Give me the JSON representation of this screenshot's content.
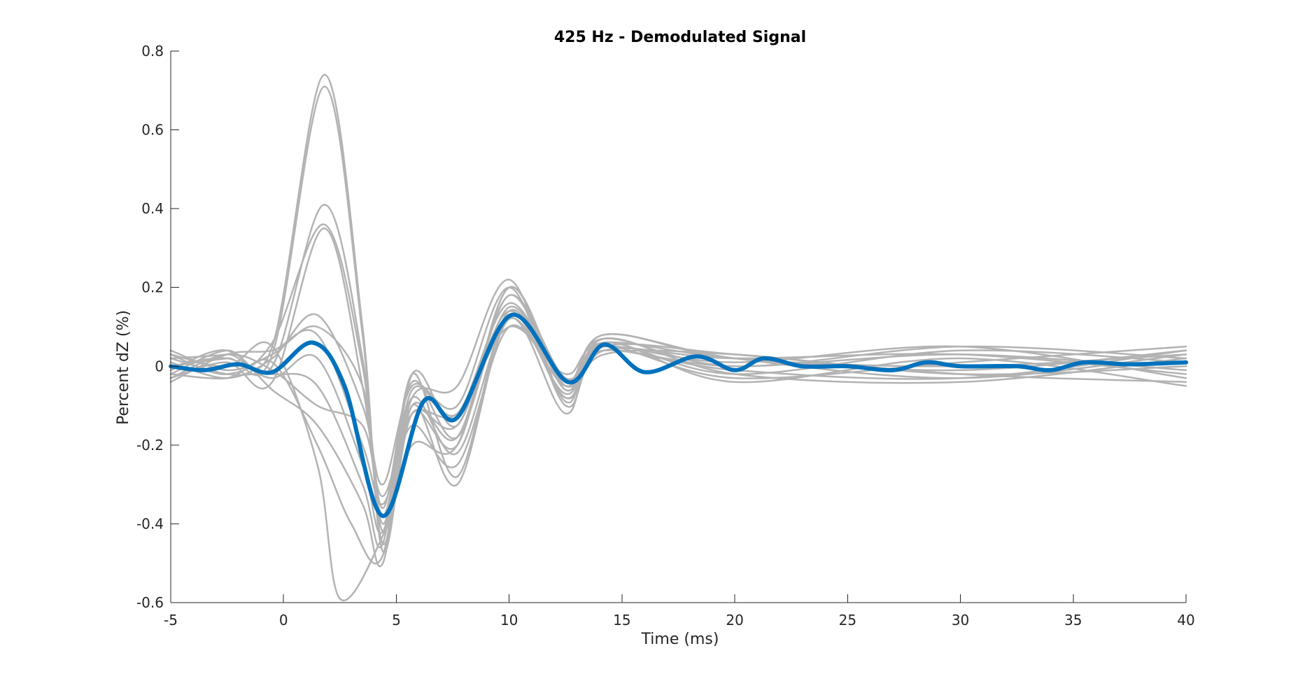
{
  "chart_data": {
    "type": "line",
    "title": "425 Hz - Demodulated Signal",
    "xlabel": "Time (ms)",
    "ylabel": "Percent dZ (%)",
    "xlim": [
      -5,
      40
    ],
    "ylim": [
      -0.6,
      0.8
    ],
    "xticks": [
      -5,
      0,
      5,
      10,
      15,
      20,
      25,
      30,
      35,
      40
    ],
    "yticks": [
      -0.6,
      -0.4,
      -0.2,
      0,
      0.2,
      0.4,
      0.6,
      0.8
    ],
    "xtick_labels": [
      "-5",
      "0",
      "5",
      "10",
      "15",
      "20",
      "25",
      "30",
      "35",
      "40"
    ],
    "ytick_labels": [
      "-0.6",
      "-0.4",
      "-0.2",
      "0",
      "0.2",
      "0.4",
      "0.6",
      "0.8"
    ],
    "grid": false,
    "colors": {
      "individual": "#b3b3b3",
      "mean": "#0072bd"
    },
    "individual_traces": [
      {
        "x": [
          -5,
          -2.5,
          -0.5,
          1.8,
          3.5,
          4.4,
          5.7,
          7.7,
          10,
          12.5,
          14.2,
          20,
          30,
          40
        ],
        "y": [
          0.02,
          0.03,
          0.05,
          0.74,
          0.1,
          -0.47,
          -0.12,
          -0.2,
          0.2,
          -0.05,
          0.08,
          0.02,
          -0.03,
          0.03
        ]
      },
      {
        "x": [
          -5,
          -2.5,
          -0.5,
          1.8,
          3.5,
          4.4,
          5.7,
          7.7,
          10,
          12.5,
          14.2,
          20,
          30,
          40
        ],
        "y": [
          0.0,
          0.02,
          0.03,
          0.71,
          0.08,
          -0.45,
          -0.1,
          -0.18,
          0.18,
          -0.06,
          0.06,
          -0.02,
          0.04,
          0.01
        ]
      },
      {
        "x": [
          -5,
          -2.5,
          -0.5,
          1.8,
          3.5,
          4.4,
          5.7,
          7.7,
          10,
          12.5,
          14.2,
          20,
          30,
          40
        ],
        "y": [
          -0.02,
          0.04,
          0.0,
          0.41,
          0.02,
          -0.42,
          -0.12,
          -0.15,
          0.14,
          -0.08,
          0.05,
          0.03,
          -0.02,
          -0.04
        ]
      },
      {
        "x": [
          -5,
          -2.5,
          -0.5,
          1.8,
          3.5,
          4.4,
          5.7,
          7.7,
          10,
          12.5,
          14.2,
          20,
          30,
          40
        ],
        "y": [
          0.03,
          -0.02,
          0.06,
          0.36,
          0.0,
          -0.4,
          -0.06,
          -0.12,
          0.16,
          -0.04,
          0.07,
          0.0,
          0.05,
          0.02
        ]
      },
      {
        "x": [
          -5,
          -2.5,
          -0.5,
          1.8,
          3.5,
          4.4,
          5.7,
          7.7,
          10,
          12.5,
          14.2,
          20,
          30,
          40
        ],
        "y": [
          -0.03,
          0.01,
          -0.04,
          0.35,
          -0.05,
          -0.38,
          -0.08,
          -0.22,
          0.12,
          -0.07,
          0.05,
          -0.03,
          0.01,
          0.05
        ]
      },
      {
        "x": [
          -5,
          -2.5,
          -0.5,
          1.5,
          3.5,
          4.4,
          5.7,
          7.7,
          10,
          12.5,
          14.2,
          20,
          30,
          40
        ],
        "y": [
          0.01,
          -0.03,
          0.02,
          0.13,
          -0.1,
          -0.3,
          -0.05,
          -0.1,
          0.2,
          -0.1,
          0.04,
          0.02,
          0.03,
          -0.02
        ]
      },
      {
        "x": [
          -5,
          -2.5,
          -0.5,
          1.5,
          3.5,
          4.4,
          5.7,
          7.7,
          10,
          12.5,
          14.2,
          20,
          30,
          40
        ],
        "y": [
          -0.04,
          0.03,
          0.04,
          0.08,
          -0.2,
          -0.35,
          -0.15,
          -0.25,
          0.1,
          -0.05,
          0.04,
          -0.01,
          -0.03,
          0.04
        ]
      },
      {
        "x": [
          -5,
          -2.5,
          -0.5,
          1.5,
          3.5,
          4.4,
          5.7,
          7.7,
          10,
          12.5,
          14.2,
          20,
          30,
          40
        ],
        "y": [
          0.02,
          -0.02,
          -0.02,
          -0.05,
          -0.3,
          -0.45,
          -0.02,
          -0.28,
          0.14,
          -0.08,
          0.03,
          0.03,
          -0.02,
          0.0
        ]
      },
      {
        "x": [
          -5,
          -2.5,
          -0.5,
          1.5,
          3.5,
          4.4,
          5.7,
          7.7,
          10,
          12.5,
          14.2,
          20,
          30,
          40
        ],
        "y": [
          -0.01,
          0.04,
          -0.06,
          -0.15,
          -0.35,
          -0.5,
          -0.1,
          -0.3,
          0.12,
          -0.12,
          0.06,
          -0.04,
          0.02,
          -0.05
        ]
      },
      {
        "x": [
          -5,
          -2.5,
          -0.5,
          1.5,
          2.5,
          4.4,
          5.7,
          7.7,
          10,
          12.5,
          14.2,
          20,
          30,
          40
        ],
        "y": [
          0.03,
          0.0,
          0.05,
          -0.25,
          -0.59,
          -0.43,
          -0.2,
          -0.2,
          0.2,
          -0.06,
          0.08,
          0.02,
          0.0,
          0.03
        ]
      },
      {
        "x": [
          -5,
          -2.5,
          -0.5,
          1.5,
          3.0,
          4.4,
          5.7,
          7.7,
          10,
          12.5,
          14.2,
          20,
          30,
          40
        ],
        "y": [
          -0.02,
          -0.03,
          0.01,
          -0.2,
          -0.4,
          -0.48,
          -0.02,
          -0.15,
          0.18,
          -0.03,
          0.05,
          0.01,
          0.05,
          -0.03
        ]
      },
      {
        "x": [
          -5,
          -2.5,
          -0.5,
          1.5,
          3.5,
          4.4,
          5.7,
          7.7,
          10,
          12.5,
          14.2,
          20,
          30,
          40
        ],
        "y": [
          0.0,
          0.02,
          -0.03,
          0.02,
          -0.25,
          -0.42,
          -0.08,
          -0.05,
          0.22,
          -0.09,
          0.07,
          -0.02,
          -0.04,
          0.02
        ]
      },
      {
        "x": [
          -5,
          -2.5,
          -0.5,
          1.5,
          3.5,
          4.4,
          5.7,
          7.7,
          10,
          12.5,
          14.2,
          20,
          30,
          40
        ],
        "y": [
          0.04,
          -0.01,
          0.03,
          0.1,
          -0.05,
          -0.36,
          -0.04,
          -0.18,
          0.15,
          -0.05,
          0.04,
          0.0,
          0.03,
          -0.01
        ]
      },
      {
        "x": [
          -5,
          -2.5,
          -0.5,
          1.5,
          3.5,
          4.4,
          5.7,
          7.7,
          10,
          12.5,
          14.2,
          20,
          30,
          40
        ],
        "y": [
          -0.03,
          0.03,
          -0.01,
          -0.1,
          -0.15,
          -0.33,
          -0.12,
          -0.12,
          0.1,
          -0.02,
          0.06,
          0.02,
          -0.01,
          0.04
        ]
      }
    ],
    "mean_trace": {
      "x": [
        -5,
        -3.5,
        -2,
        -0.5,
        1.3,
        2.7,
        4.4,
        6.2,
        7.7,
        10.1,
        12.6,
        14.2,
        16,
        18.3,
        20,
        21.3,
        23,
        25,
        27,
        28.5,
        30,
        32.5,
        34,
        35.5,
        37.5,
        40
      ],
      "y": [
        0.0,
        -0.01,
        0.005,
        -0.015,
        0.06,
        -0.05,
        -0.38,
        -0.09,
        -0.13,
        0.13,
        -0.04,
        0.055,
        -0.015,
        0.025,
        -0.01,
        0.02,
        0.0,
        0.0,
        -0.01,
        0.01,
        0.0,
        0.0,
        -0.01,
        0.01,
        0.005,
        0.01
      ]
    }
  }
}
